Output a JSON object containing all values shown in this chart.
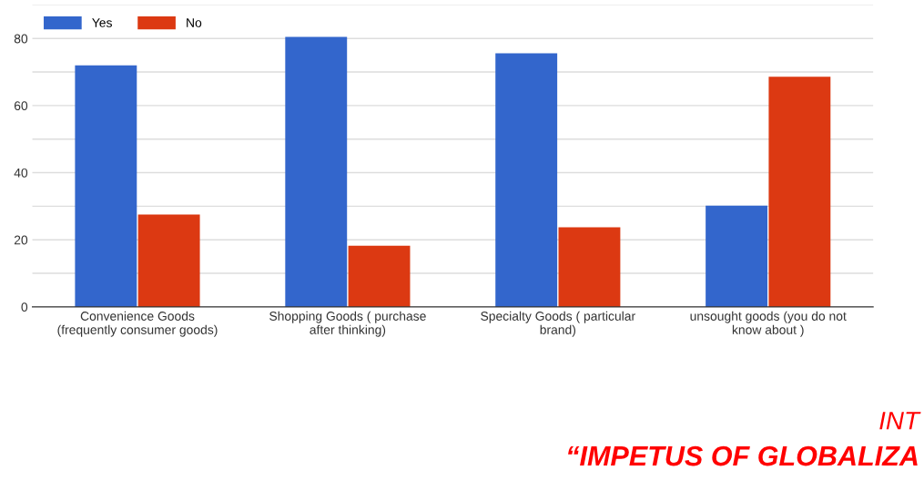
{
  "chart_data": {
    "type": "bar",
    "categories": [
      "Convenience Goods\n(frequently consumer goods)",
      "Shopping Goods ( purchase\nafter thinking)",
      "Specialty Goods ( particular\nbrand)",
      "unsought goods (you do not\nknow about )"
    ],
    "series": [
      {
        "name": "Yes",
        "color": "#3366cc",
        "values": [
          72,
          80.5,
          75.6,
          30.2
        ]
      },
      {
        "name": "No",
        "color": "#dc3912",
        "values": [
          27.5,
          18.2,
          23.7,
          68.6
        ]
      }
    ],
    "ylim": [
      0,
      90
    ],
    "yticks": [
      0,
      {
        "value": 10,
        "label": null
      },
      20,
      {
        "value": 30,
        "label": null
      },
      40,
      {
        "value": 50,
        "label": null
      },
      60,
      {
        "value": 70,
        "label": null
      },
      80,
      {
        "value": 90,
        "label": null
      }
    ],
    "grid": "y",
    "legend": "top left",
    "annotations": [
      "INT",
      "“IMPETUS OF GLOBALIZA"
    ]
  }
}
